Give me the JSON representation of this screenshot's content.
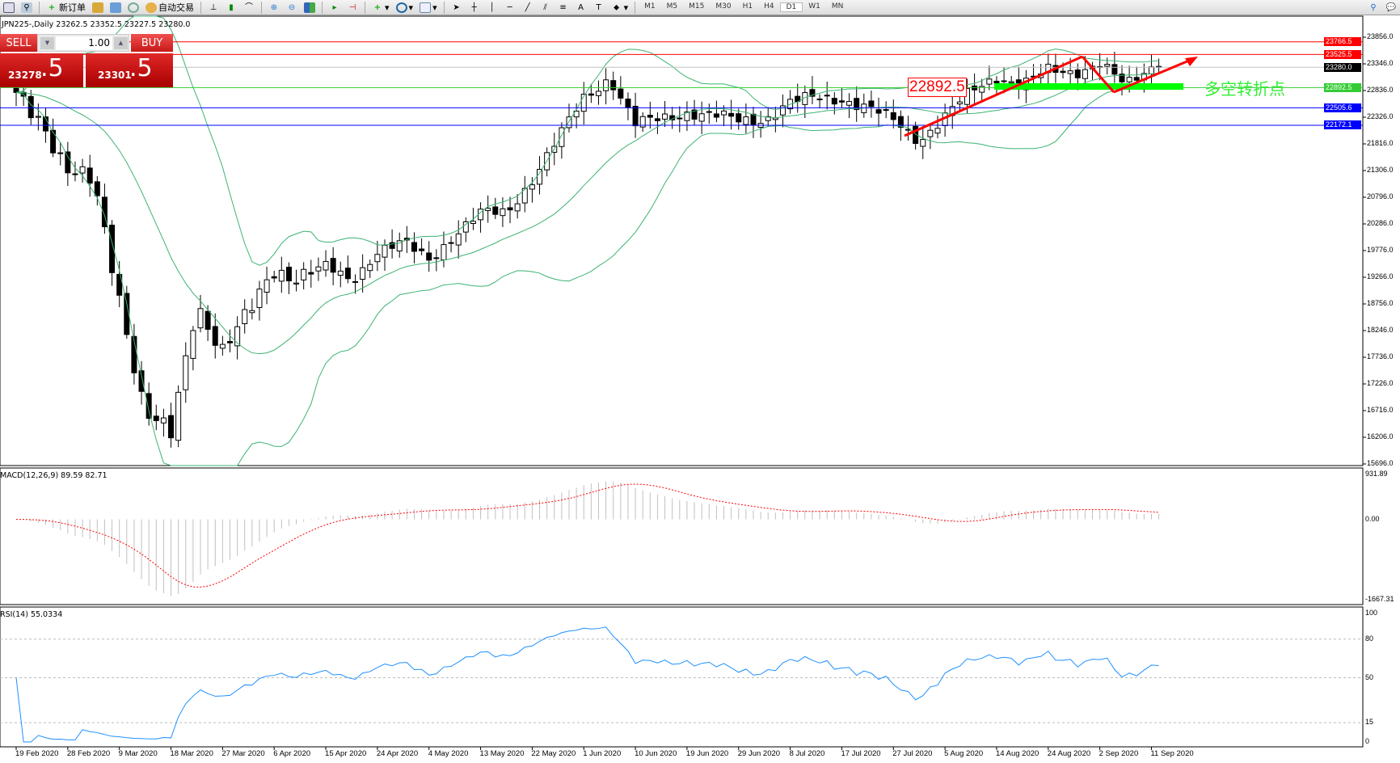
{
  "toolbar": {
    "new_order": "新订单",
    "auto_trading": "自动交易",
    "timeframes": [
      "M1",
      "M5",
      "M15",
      "M30",
      "H1",
      "H4",
      "D1",
      "W1",
      "MN"
    ],
    "active_timeframe": "D1",
    "icons": [
      "new-chart-icon",
      "profiles-icon",
      "new-order-icon",
      "market-watch-icon",
      "navigator-icon",
      "signals-icon",
      "auto-trading-icon",
      "bar-chart-icon",
      "candlestick-icon",
      "line-chart-icon",
      "zoom-in-icon",
      "zoom-out-icon",
      "tile-windows-icon",
      "autoscroll-icon",
      "chart-shift-icon",
      "indicators-icon",
      "periods-icon",
      "templates-icon",
      "cursor-icon",
      "crosshair-icon",
      "vertical-line-icon",
      "horizontal-line-icon",
      "trendline-icon",
      "equidistant-channel-icon",
      "fibonacci-icon",
      "text-icon",
      "text-label-icon",
      "arrows-icon",
      "search-icon",
      "chat-icon"
    ]
  },
  "chart": {
    "header": "JPN225-,Daily  23262.5 23352.5 23227.5 23280.0",
    "symbol": "JPN225-",
    "period": "Daily",
    "ohlc": {
      "open": "23262.5",
      "high": "23352.5",
      "low": "23227.5",
      "close": "23280.0"
    }
  },
  "one_click": {
    "sell_label": "SELL",
    "buy_label": "BUY",
    "volume": "1.00",
    "sell_price_main": "23278",
    "sell_price_frac": ".5",
    "buy_price_main": "23301",
    "buy_price_frac": ".5"
  },
  "price_axis": {
    "ticks": [
      "23856.0",
      "23346.0",
      "22836.0",
      "22326.0",
      "21816.0",
      "21306.0",
      "20796.0",
      "20286.0",
      "19776.0",
      "19266.0",
      "18756.0",
      "18246.0",
      "17736.0",
      "17226.0",
      "16716.0",
      "16206.0",
      "15696.0"
    ],
    "range": [
      15696,
      23856
    ]
  },
  "levels": [
    {
      "value": "23766.5",
      "color": "#ff0000",
      "label_color": "#ff0000"
    },
    {
      "value": "23525.5",
      "color": "#ff0000",
      "label_color": "#ff0000"
    },
    {
      "value": "23280.0",
      "color": "#c0c0c0",
      "label_color": "#000000"
    },
    {
      "value": "22892.5",
      "color": "#33cc33",
      "label_color": "#33cc33"
    },
    {
      "value": "22505.6",
      "color": "#0000ff",
      "label_color": "#0000ff"
    },
    {
      "value": "22172.1",
      "color": "#0000ff",
      "label_color": "#0000ff"
    }
  ],
  "annotations": {
    "price_box": "22892.5",
    "chinese_label": "多空转折点",
    "arrow_color": "#ff0000",
    "zone_color": "#00ff00"
  },
  "chart_data": {
    "type": "candlestick",
    "dates": [
      "19 Feb 2020",
      "28 Feb 2020",
      "9 Mar 2020",
      "18 Mar 2020",
      "27 Mar 2020",
      "6 Apr 2020",
      "15 Apr 2020",
      "24 Apr 2020",
      "4 May 2020",
      "13 May 2020",
      "22 May 2020",
      "1 Jun 2020",
      "10 Jun 2020",
      "19 Jun 2020",
      "29 Jun 2020",
      "8 Jul 2020",
      "17 Jul 2020",
      "27 Jul 2020",
      "5 Aug 2020",
      "14 Aug 2020",
      "24 Aug 2020",
      "2 Sep 2020",
      "11 Sep 2020"
    ],
    "approx_closes_half_weekly": [
      22690,
      22300,
      21320,
      21000,
      18930,
      16700,
      16190,
      18800,
      17900,
      18500,
      19440,
      19300,
      19440,
      19200,
      19780,
      19900,
      19610,
      20100,
      20470,
      20500,
      21150,
      21900,
      22690,
      23100,
      22180,
      22300,
      22430,
      22350,
      22260,
      22300,
      22600,
      22700,
      22690,
      22500,
      22260,
      21900,
      22340,
      22800,
      23120,
      22950,
      23200,
      23200,
      23370,
      22900,
      23290
    ],
    "last_close": 23280.0,
    "overlays": [
      "Bollinger Bands"
    ],
    "bollinger_color": "#3cb371"
  },
  "macd": {
    "label": "MACD(12,26,9) 89.59 82.71",
    "axis": [
      "931.89",
      "0.00",
      "-1667.31"
    ],
    "range": [
      -1667.31,
      931.89
    ],
    "histogram_color": "#c0c0c0",
    "signal_color": "#ff0000"
  },
  "rsi": {
    "label": "RSI(14) 55.0334",
    "axis": [
      "100",
      "80",
      "50",
      "15",
      "0"
    ],
    "levels": [
      80,
      50,
      15
    ],
    "line_color": "#1e90ff"
  }
}
